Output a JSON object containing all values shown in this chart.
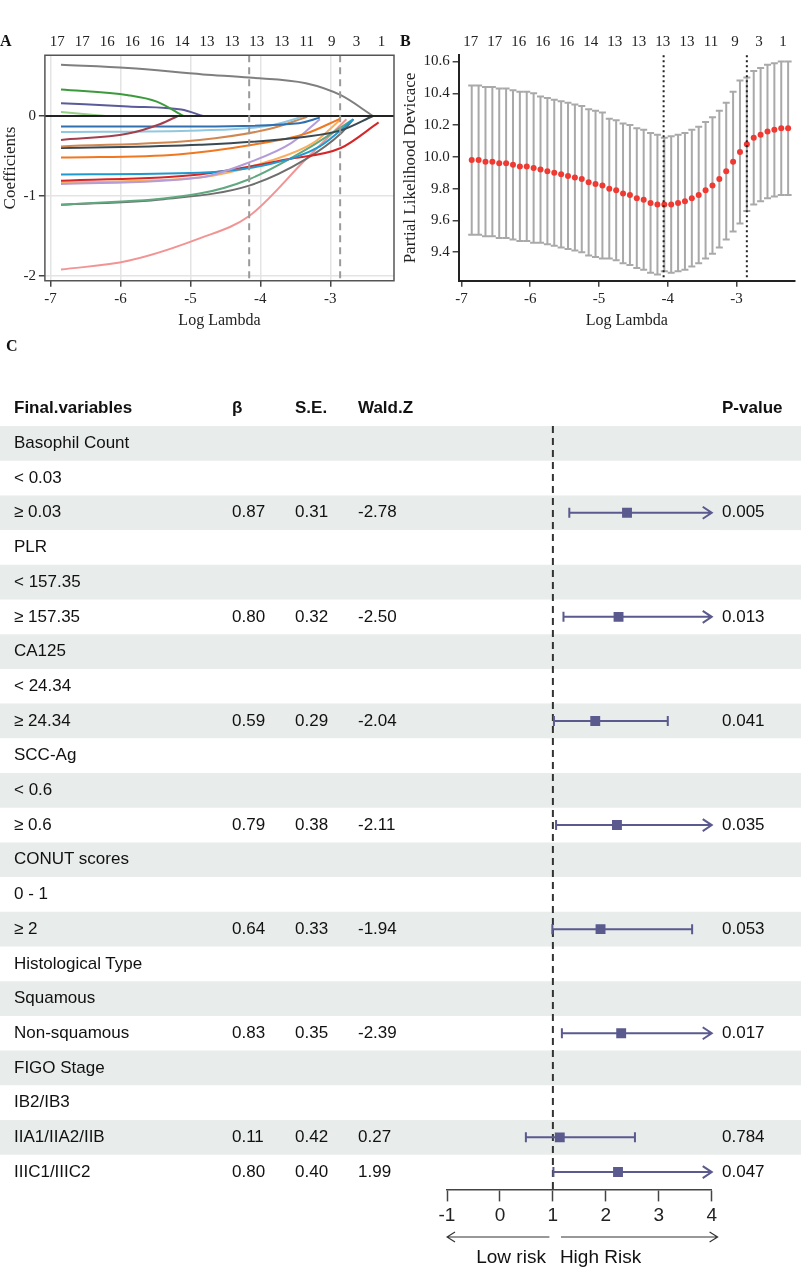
{
  "chart_data": [
    {
      "type": "line",
      "title": "A",
      "xlabel": "Log Lambda",
      "ylabel": "Coefficients",
      "xlim": [
        -7.08,
        -2.09
      ],
      "xticks": [
        -7,
        -6,
        -5,
        -4,
        -3
      ],
      "ylim": [
        -2.06,
        0.76
      ],
      "yticks": [
        -2,
        -1,
        0
      ],
      "grid": true,
      "annotations": [
        "17",
        "17",
        "16",
        "16",
        "16",
        "14",
        "13",
        "13",
        "13",
        "13",
        "11",
        "9",
        "3",
        "1"
      ],
      "ref_lines": [
        {
          "axis": "y",
          "value": 0,
          "color": "#222222"
        },
        {
          "axis": "x",
          "value": -4.16,
          "color": "#9a9a9a",
          "line_style": "dashed"
        },
        {
          "axis": "x",
          "value": -2.86,
          "color": "#9a9a9a",
          "line_style": "dashed"
        }
      ],
      "series": [
        {
          "color": "#7f7f7f",
          "x": [
            -6.85,
            -5.89,
            -4.82,
            -4.16,
            -3.35,
            -2.85,
            -2.39
          ],
          "values": [
            0.64,
            0.6,
            0.52,
            0.48,
            0.41,
            0.26,
            0
          ]
        },
        {
          "color": "#3c9a3c",
          "x": [
            -6.85,
            -5.89,
            -5.48,
            -5.1
          ],
          "values": [
            0.33,
            0.26,
            0.18,
            0
          ]
        },
        {
          "color": "#5b5b9b",
          "x": [
            -6.85,
            -5.89,
            -5.13,
            -4.82
          ],
          "values": [
            0.16,
            0.12,
            0.08,
            0
          ]
        },
        {
          "color": "#98d088",
          "x": [
            -6.85,
            -6.21
          ],
          "values": [
            0.05,
            0
          ]
        },
        {
          "color": "#a3404e",
          "x": [
            -6.85,
            -5.89,
            -5.43,
            -5.18
          ],
          "values": [
            -0.3,
            -0.22,
            -0.1,
            0
          ]
        },
        {
          "color": "#3070b0",
          "x": [
            -6.85,
            -4.87,
            -3.45,
            -3.15
          ],
          "values": [
            -0.13,
            -0.13,
            -0.09,
            -0.02
          ]
        },
        {
          "color": "#90c8e0",
          "x": [
            -6.85,
            -4.87,
            -3.86,
            -3.4
          ],
          "values": [
            -0.2,
            -0.18,
            -0.12,
            -0.01
          ]
        },
        {
          "color": "#d08850",
          "x": [
            -6.85,
            -4.87,
            -3.86,
            -3.33
          ],
          "values": [
            -0.38,
            -0.3,
            -0.16,
            -0.01
          ]
        },
        {
          "color": "#3a4a52",
          "x": [
            -6.85,
            -4.87,
            -3.35,
            -2.85,
            -2.39
          ],
          "values": [
            -0.4,
            -0.36,
            -0.26,
            -0.18,
            0
          ]
        },
        {
          "color": "#f07820",
          "x": [
            -6.85,
            -5.18,
            -4.11,
            -3.35,
            -2.85
          ],
          "values": [
            -0.52,
            -0.48,
            -0.36,
            -0.22,
            -0.03
          ]
        },
        {
          "color": "#b49cd8",
          "x": [
            -6.85,
            -4.87,
            -4.16,
            -3.56,
            -3.15
          ],
          "values": [
            -0.85,
            -0.77,
            -0.58,
            -0.34,
            -0.04
          ]
        },
        {
          "color": "#2098d0",
          "x": [
            -6.85,
            -4.87,
            -3.86,
            -3.15,
            -2.67
          ],
          "values": [
            -0.73,
            -0.71,
            -0.6,
            -0.38,
            -0.04
          ]
        },
        {
          "color": "#d62728",
          "x": [
            -6.85,
            -4.87,
            -3.61,
            -2.85,
            -2.31
          ],
          "values": [
            -0.81,
            -0.73,
            -0.54,
            -0.4,
            -0.08
          ]
        },
        {
          "color": "#f8b060",
          "x": [
            -6.85,
            -4.87,
            -3.86,
            -3.25,
            -2.85
          ],
          "values": [
            -0.83,
            -0.77,
            -0.56,
            -0.34,
            -0.04
          ]
        },
        {
          "color": "#60a880",
          "x": [
            -6.85,
            -4.87,
            -4.16,
            -3.35,
            -2.69
          ],
          "values": [
            -1.11,
            -0.97,
            -0.79,
            -0.42,
            -0.05
          ]
        },
        {
          "color": "#6e6e6e",
          "x": [
            -6.85,
            -5.38,
            -4.16,
            -3.35,
            -2.85,
            -2.67
          ],
          "values": [
            -1.11,
            -1.04,
            -0.87,
            -0.54,
            -0.22,
            -0.04
          ]
        },
        {
          "color": "#f29494",
          "x": [
            -6.85,
            -5.89,
            -4.87,
            -4.16,
            -3.35,
            -2.77
          ],
          "values": [
            -1.92,
            -1.81,
            -1.53,
            -1.25,
            -0.54,
            -0.04
          ]
        }
      ]
    },
    {
      "type": "scatter",
      "title": "B",
      "xlabel": "Log Lambda",
      "ylabel": "Partial Likelihood Devicace",
      "xlim": [
        -7.04,
        -2.15
      ],
      "xticks": [
        -7,
        -6,
        -5,
        -4,
        -3
      ],
      "ylim": [
        9.22,
        10.64
      ],
      "yticks": [
        9.4,
        9.6,
        9.8,
        {
          "value": 10,
          "label": "10.0"
        },
        10.2,
        10.4,
        10.6
      ],
      "marker": "circle",
      "annotations": [
        "17",
        "17",
        "16",
        "16",
        "16",
        "14",
        "13",
        "13",
        "13",
        "13",
        "11",
        "9",
        "3",
        "1"
      ],
      "ref_lines": [
        {
          "axis": "x",
          "value": -4.06,
          "color": "#222222",
          "line_style": "dotted"
        },
        {
          "axis": "x",
          "value": -2.85,
          "color": "#222222",
          "line_style": "dotted"
        }
      ],
      "series": [
        {
          "color": "#ee3a32",
          "x": [
            -6.85,
            -6.75,
            -6.65,
            -6.55,
            -6.45,
            -6.35,
            -6.25,
            -6.15,
            -6.05,
            -5.95,
            -5.85,
            -5.75,
            -5.65,
            -5.55,
            -5.45,
            -5.35,
            -5.25,
            -5.15,
            -5.05,
            -4.95,
            -4.85,
            -4.75,
            -4.65,
            -4.55,
            -4.45,
            -4.35,
            -4.25,
            -4.15,
            -4.05,
            -3.95,
            -3.85,
            -3.75,
            -3.65,
            -3.55,
            -3.45,
            -3.35,
            -3.25,
            -3.15,
            -3.05,
            -2.95,
            -2.85,
            -2.75,
            -2.65,
            -2.55,
            -2.45,
            -2.35,
            -2.25
          ],
          "values": [
            9.98,
            9.98,
            9.97,
            9.97,
            9.96,
            9.96,
            9.95,
            9.94,
            9.94,
            9.93,
            9.92,
            9.91,
            9.9,
            9.89,
            9.88,
            9.87,
            9.86,
            9.84,
            9.83,
            9.82,
            9.8,
            9.79,
            9.77,
            9.76,
            9.74,
            9.73,
            9.71,
            9.7,
            9.7,
            9.7,
            9.71,
            9.72,
            9.74,
            9.76,
            9.79,
            9.82,
            9.86,
            9.91,
            9.97,
            10.03,
            10.08,
            10.12,
            10.14,
            10.16,
            10.17,
            10.18,
            10.18
          ],
          "errors": [
            0.47,
            0.47,
            0.47,
            0.47,
            0.47,
            0.47,
            0.47,
            0.47,
            0.47,
            0.47,
            0.46,
            0.46,
            0.46,
            0.46,
            0.46,
            0.46,
            0.46,
            0.46,
            0.46,
            0.46,
            0.44,
            0.44,
            0.44,
            0.44,
            0.44,
            0.44,
            0.44,
            0.44,
            0.42,
            0.43,
            0.43,
            0.43,
            0.43,
            0.43,
            0.43,
            0.43,
            0.43,
            0.43,
            0.44,
            0.45,
            0.42,
            0.42,
            0.42,
            0.42,
            0.42,
            0.42,
            0.42
          ]
        }
      ]
    },
    {
      "type": "scatter",
      "marker": "square",
      "orientation": "horizontal",
      "xlim": [
        -1,
        4
      ],
      "xticks": [
        -1,
        0,
        1,
        2,
        3,
        4
      ],
      "categories": [
        null,
        null,
        null,
        null,
        null,
        null,
        null,
        null,
        null,
        null,
        null,
        null,
        null,
        null,
        null,
        null,
        null,
        null,
        null,
        null,
        null,
        null
      ],
      "ref_lines": [
        {
          "axis": "x",
          "value": 1,
          "color": "#333333",
          "line_style": "dashed"
        }
      ],
      "annotations": [
        "Low risk",
        "High Risk"
      ],
      "series": [
        {
          "color": "#5a5a8e",
          "values": [
            null,
            null,
            2.4,
            null,
            null,
            2.24,
            null,
            null,
            1.8,
            null,
            null,
            2.21,
            null,
            null,
            1.9,
            null,
            null,
            2.29,
            null,
            null,
            1.13,
            2.23
          ],
          "errors": [
            null,
            null,
            [
              1.31,
              4
            ],
            null,
            null,
            [
              1.2,
              4
            ],
            null,
            null,
            [
              1.02,
              3.17
            ],
            null,
            null,
            [
              1.06,
              4
            ],
            null,
            null,
            [
              0.99,
              3.63
            ],
            null,
            null,
            [
              1.17,
              4
            ],
            null,
            null,
            [
              0.49,
              2.55
            ],
            [
              1.01,
              4
            ]
          ]
        }
      ]
    },
    {
      "type": "heatmap",
      "title": "C",
      "ylabel": "Final.variables",
      "categories": [
        "β",
        "S.E.",
        "Wald.Z"
      ],
      "y_categories": [
        "Basophil Count",
        "< 0.03",
        "≥ 0.03",
        "PLR",
        "< 157.35",
        "≥ 157.35",
        "CA125",
        "< 24.34",
        "≥ 24.34",
        "SCC-Ag",
        "< 0.6",
        "≥ 0.6",
        "CONUT scores",
        "0 - 1",
        "≥ 2",
        "Histological Type",
        "Squamous",
        "Non-squamous",
        "FIGO Stage",
        "IB2/IB3",
        "IIA1/IIA2/IIB",
        "IIIC1/IIIC2"
      ],
      "cells": [
        [
          null,
          null,
          null
        ],
        [
          null,
          null,
          null
        ],
        [
          0.87,
          0.31,
          -2.78
        ],
        [
          null,
          null,
          null
        ],
        [
          null,
          null,
          null
        ],
        [
          0.8,
          0.32,
          -2.5
        ],
        [
          null,
          null,
          null
        ],
        [
          null,
          null,
          null
        ],
        [
          0.59,
          0.29,
          -2.04
        ],
        [
          null,
          null,
          null
        ],
        [
          null,
          null,
          null
        ],
        [
          0.79,
          0.38,
          -2.11
        ],
        [
          null,
          null,
          null
        ],
        [
          null,
          null,
          null
        ],
        [
          0.64,
          0.33,
          -1.94
        ],
        [
          null,
          null,
          null
        ],
        [
          null,
          null,
          null
        ],
        [
          0.83,
          0.35,
          -2.39
        ],
        [
          null,
          null,
          null
        ],
        [
          null,
          null,
          null
        ],
        [
          0.11,
          0.42,
          0.27
        ],
        [
          0.8,
          0.4,
          1.99
        ]
      ],
      "cell_labels": [
        [
          null,
          null,
          null
        ],
        [
          null,
          null,
          null
        ],
        [
          "0.87",
          "0.31",
          "-2.78"
        ],
        [
          null,
          null,
          null
        ],
        [
          null,
          null,
          null
        ],
        [
          "0.80",
          "0.32",
          "-2.50"
        ],
        [
          null,
          null,
          null
        ],
        [
          null,
          null,
          null
        ],
        [
          "0.59",
          "0.29",
          "-2.04"
        ],
        [
          null,
          null,
          null
        ],
        [
          null,
          null,
          null
        ],
        [
          "0.79",
          "0.38",
          "-2.11"
        ],
        [
          null,
          null,
          null
        ],
        [
          null,
          null,
          null
        ],
        [
          "0.64",
          "0.33",
          "-1.94"
        ],
        [
          null,
          null,
          null
        ],
        [
          null,
          null,
          null
        ],
        [
          "0.83",
          "0.35",
          "-2.39"
        ],
        [
          null,
          null,
          null
        ],
        [
          null,
          null,
          null
        ],
        [
          "0.11",
          "0.42",
          "0.27"
        ],
        [
          "0.80",
          "0.40",
          "1.99"
        ]
      ]
    },
    {
      "type": "other",
      "annotations": [
        "P-value",
        "0.005",
        "0.013",
        "0.041",
        "0.035",
        "0.053",
        "0.017",
        "0.784",
        "0.047"
      ]
    }
  ]
}
